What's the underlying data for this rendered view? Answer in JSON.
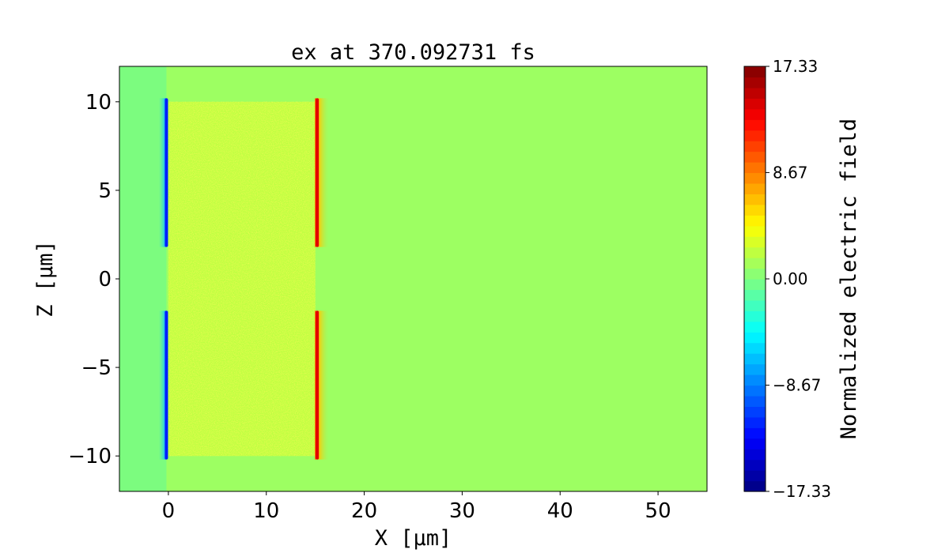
{
  "chart_data": {
    "type": "heatmap",
    "title": "ex at 370.092731 fs",
    "xlabel": "X [μm]",
    "ylabel": "Z [μm]",
    "xlim": [
      -5,
      55
    ],
    "ylim": [
      -12,
      12
    ],
    "x_ticks": [
      0,
      10,
      20,
      30,
      40,
      50
    ],
    "x_tick_labels": [
      "0",
      "10",
      "20",
      "30",
      "40",
      "50"
    ],
    "y_ticks": [
      -10,
      -5,
      0,
      5,
      10
    ],
    "y_tick_labels": [
      "−10",
      "−5",
      "0",
      "5",
      "10"
    ],
    "colormap": "jet",
    "colorbar": {
      "label": "Normalized electric field",
      "range": [
        -17.33,
        17.33
      ],
      "ticks": [
        -17.33,
        -8.67,
        0.0,
        8.67,
        17.33
      ],
      "tick_labels": [
        "−17.33",
        "−8.67",
        "0.00",
        "8.67",
        "17.33"
      ]
    },
    "background_value": 1.0,
    "features": [
      {
        "name": "left-target-edge",
        "x": -0.2,
        "z_segments": [
          [
            1.8,
            10.2
          ],
          [
            -10.2,
            -1.8
          ]
        ],
        "value": -12
      },
      {
        "name": "right-target-edge",
        "x": 15.2,
        "z_segments": [
          [
            1.8,
            10.2
          ],
          [
            -10.2,
            -1.8
          ]
        ],
        "value": 14
      },
      {
        "name": "target-interior",
        "x_range": [
          0,
          15
        ],
        "z_range": [
          -10,
          10
        ],
        "value": 3
      }
    ]
  }
}
